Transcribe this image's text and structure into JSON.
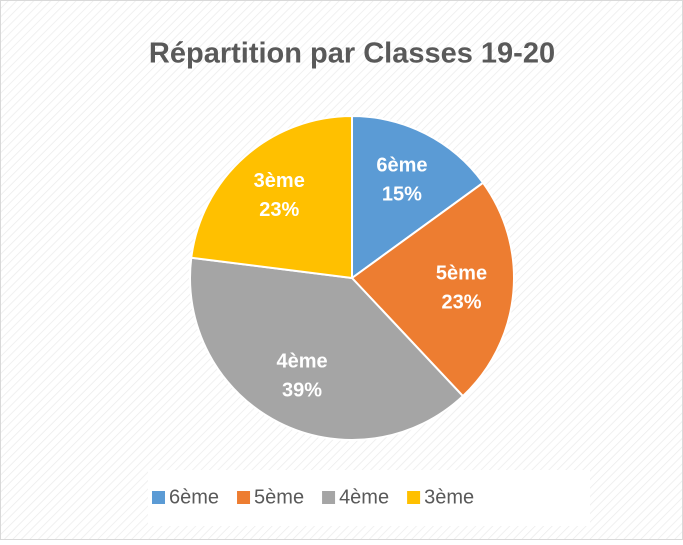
{
  "chart_data": {
    "type": "pie",
    "title": "Répartition par Classes 19-20",
    "categories": [
      "6ème",
      "5ème",
      "4ème",
      "3ème"
    ],
    "values": [
      15,
      23,
      39,
      23
    ],
    "value_labels": [
      "15%",
      "23%",
      "39%",
      "23%"
    ],
    "colors": [
      "#5b9bd5",
      "#ed7d31",
      "#a5a5a5",
      "#ffc000"
    ],
    "legend": "bottom"
  }
}
